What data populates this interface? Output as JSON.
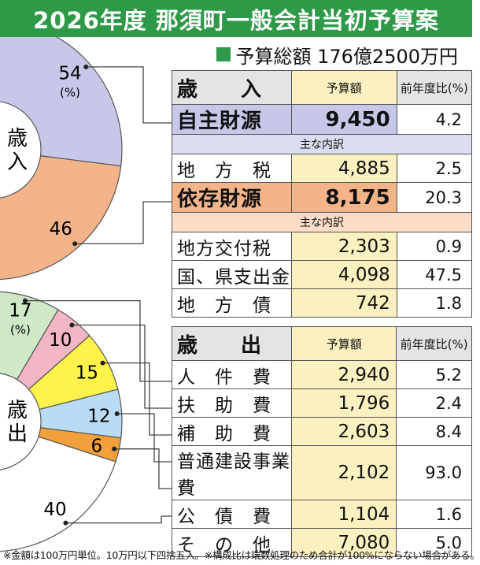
{
  "header": {
    "title": "2026年度 那須町一般会計当初予算案",
    "total": "予算総額 176億2500万円"
  },
  "revenue_table": {
    "heading": "歳　　入",
    "col_amount": "予算額",
    "col_ratio": "前年度比(%)",
    "rows": [
      {
        "kind": "major",
        "name": "自主財源",
        "amount": "9,450",
        "ratio": "4.2"
      },
      {
        "kind": "sub",
        "name": "主な内訳"
      },
      {
        "kind": "item",
        "name": "地　方　税",
        "amount": "4,885",
        "ratio": "2.5"
      },
      {
        "kind": "major",
        "name": "依存財源",
        "amount": "8,175",
        "ratio": "20.3"
      },
      {
        "kind": "sub",
        "name": "主な内訳"
      },
      {
        "kind": "item",
        "name": "地方交付税",
        "amount": "2,303",
        "ratio": "0.9"
      },
      {
        "kind": "item",
        "name": "国、県支出金",
        "amount": "4,098",
        "ratio": "47.5"
      },
      {
        "kind": "item",
        "name": "地　方　債",
        "amount": "742",
        "ratio": "1.8"
      }
    ]
  },
  "expenditure_table": {
    "heading": "歳　　出",
    "col_amount": "予算額",
    "col_ratio": "前年度比(%)",
    "rows": [
      {
        "kind": "item",
        "name": "人　件　費",
        "amount": "2,940",
        "ratio": "5.2"
      },
      {
        "kind": "item",
        "name": "扶　助　費",
        "amount": "1,796",
        "ratio": "2.4"
      },
      {
        "kind": "item",
        "name": "補　助　費",
        "amount": "2,603",
        "ratio": "8.4"
      },
      {
        "kind": "item",
        "name": "普通建設事業費",
        "amount": "2,102",
        "ratio": "93.0"
      },
      {
        "kind": "item",
        "name": "公　債　費",
        "amount": "1,104",
        "ratio": "1.6"
      },
      {
        "kind": "item",
        "name": "そ　の　他",
        "amount": "7,080",
        "ratio": "5.0"
      }
    ]
  },
  "footnote": "※金額は100万円単位。10万円以下四捨五入。※構成比は端数処理のため合計が100%にならない場合がある。",
  "colors": {
    "brand": "#2e9a48",
    "revenue_major_1": "#c7c8e8",
    "revenue_sub_1": "#dcdcf0",
    "revenue_major_2": "#f4b48a",
    "revenue_sub_2": "#fbdcc6",
    "table_header": "#e4e4e4"
  },
  "chart_data": [
    {
      "type": "pie",
      "center_label": "歳入",
      "unit_label": "(%)",
      "slices": [
        {
          "label": "自主財源",
          "value": 54,
          "color": "#c7c8e8"
        },
        {
          "label": "依存財源",
          "value": 46,
          "color": "#f4b48a"
        }
      ]
    },
    {
      "type": "pie",
      "center_label": "歳出",
      "unit_label": "(%)",
      "slices": [
        {
          "label": "人件費",
          "value": 17,
          "color": "#cfe8c8"
        },
        {
          "label": "扶助費",
          "value": 10,
          "color": "#f2b6c4"
        },
        {
          "label": "補助費",
          "value": 15,
          "color": "#fff24a"
        },
        {
          "label": "普通建設事業費",
          "value": 12,
          "color": "#b9dcf4"
        },
        {
          "label": "公債費",
          "value": 6,
          "color": "#f2a03c"
        },
        {
          "label": "その他",
          "value": 40,
          "color": "#ffffff"
        }
      ]
    }
  ]
}
